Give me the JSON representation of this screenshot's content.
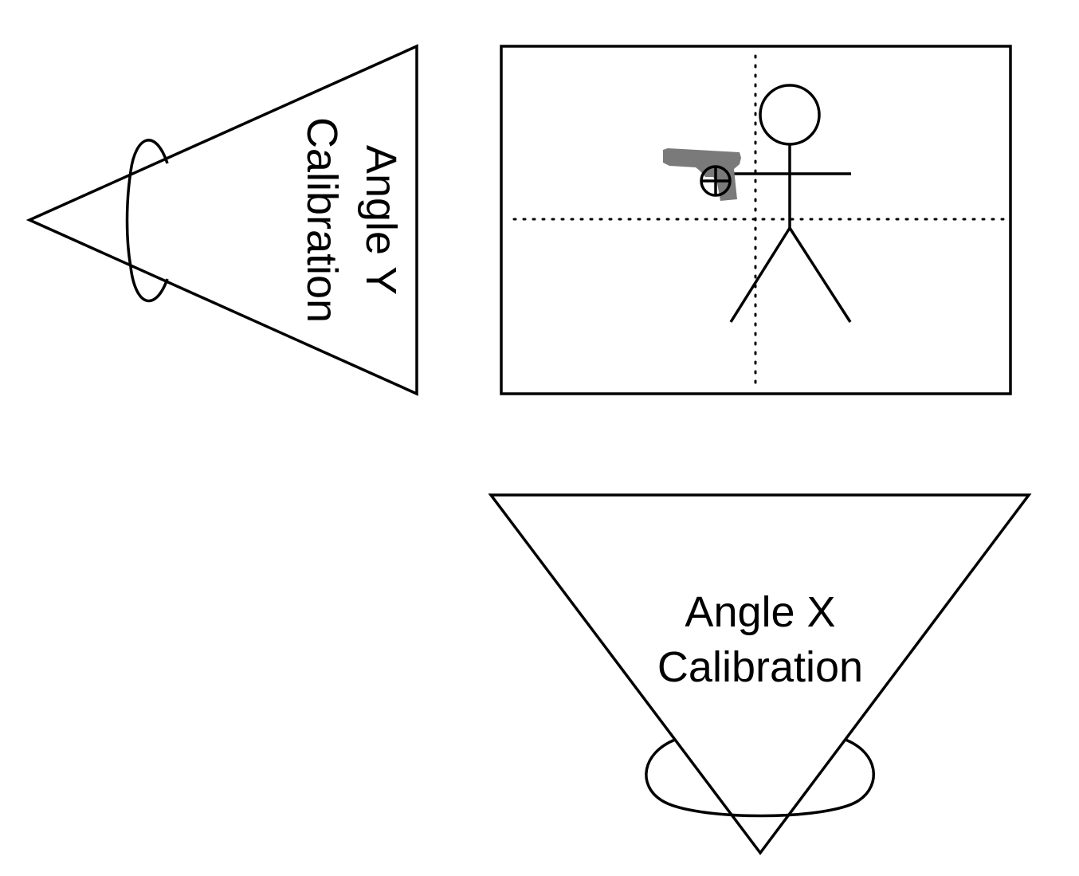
{
  "angle_y": {
    "line1": "Angle Y",
    "line2": "Calibration"
  },
  "angle_x": {
    "line1": "Angle X",
    "line2": "Calibration"
  },
  "colors": {
    "stroke": "#000000",
    "gun": "#7a7a7a",
    "background": "#ffffff"
  },
  "icons": {
    "gun": "pistol-icon",
    "crosshair": "crosshair-icon",
    "person": "stick-figure-icon"
  }
}
